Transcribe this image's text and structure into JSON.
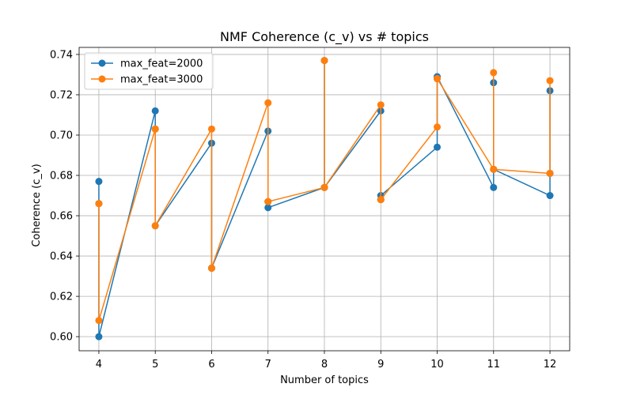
{
  "chart_data": {
    "type": "line",
    "title": "NMF Coherence (c_v) vs # topics",
    "xlabel": "Number of topics",
    "ylabel": "Coherence (c_v)",
    "xlim": [
      3.65,
      12.35
    ],
    "ylim": [
      0.593,
      0.7435
    ],
    "x_ticks": [
      4,
      5,
      6,
      7,
      8,
      9,
      10,
      11,
      12
    ],
    "x_tick_labels": [
      "4",
      "5",
      "6",
      "7",
      "8",
      "9",
      "10",
      "11",
      "12"
    ],
    "y_ticks": [
      0.6,
      0.62,
      0.64,
      0.66,
      0.68,
      0.7,
      0.72,
      0.74
    ],
    "y_tick_labels": [
      "0.60",
      "0.62",
      "0.64",
      "0.66",
      "0.68",
      "0.70",
      "0.72",
      "0.74"
    ],
    "grid": true,
    "legend_position": "top-left",
    "series": [
      {
        "name": "max_feat=2000",
        "color": "#1f77b4",
        "x": [
          4,
          4,
          4,
          5,
          5,
          5,
          6,
          6,
          6,
          7,
          7,
          7,
          8,
          8,
          8,
          9,
          9,
          9,
          10,
          10,
          10,
          11,
          11,
          11,
          12,
          12,
          12
        ],
        "y": [
          0.677,
          0.666,
          0.6,
          0.712,
          0.703,
          0.655,
          0.696,
          0.634,
          0.634,
          0.702,
          0.667,
          0.664,
          0.674,
          0.737,
          0.674,
          0.712,
          0.668,
          0.67,
          0.694,
          0.728,
          0.729,
          0.674,
          0.726,
          0.683,
          0.67,
          0.722,
          0.681
        ]
      },
      {
        "name": "max_feat=3000",
        "color": "#ff7f0e",
        "x": [
          4,
          4,
          4,
          5,
          5,
          5,
          6,
          6,
          6,
          7,
          7,
          7,
          8,
          8,
          8,
          9,
          9,
          9,
          10,
          10,
          10,
          11,
          11,
          11,
          12,
          12,
          12
        ],
        "y": [
          0.666,
          0.666,
          0.608,
          0.703,
          0.703,
          0.655,
          0.703,
          0.634,
          0.634,
          0.716,
          0.667,
          0.667,
          0.674,
          0.737,
          0.674,
          0.715,
          0.668,
          0.668,
          0.704,
          0.728,
          0.728,
          0.683,
          0.731,
          0.683,
          0.681,
          0.727,
          0.681
        ]
      }
    ]
  }
}
